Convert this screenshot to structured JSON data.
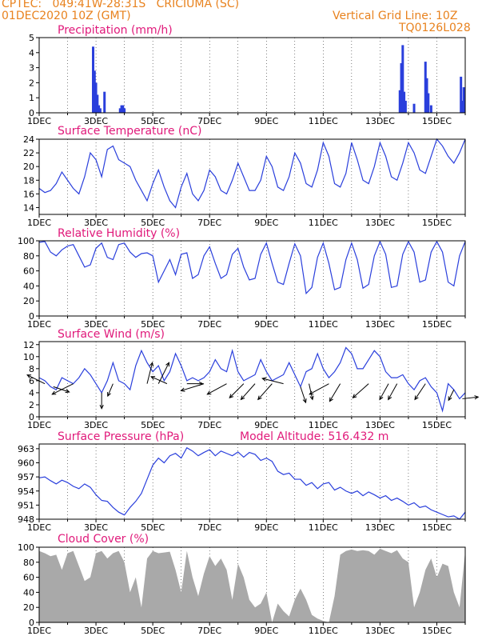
{
  "header": {
    "line1": "CPTEC:   049:41W-28:31S   CRICIUMA (SC)",
    "line2": "01DEC2020 10Z (GMT)",
    "grid_note": "Vertical Grid Line: 10Z",
    "code": "TQ0126L028"
  },
  "colors": {
    "line": "#2a3fdc",
    "wind": "#000000",
    "title": "#e0197a",
    "header": "#e8821e",
    "cloud": "#a9a9a9"
  },
  "chart_data": [
    {
      "type": "bar",
      "title": "Precipitation (mm/h)",
      "ylim": [
        0,
        5
      ],
      "yticks": [
        0,
        1,
        2,
        3,
        4,
        5
      ],
      "xtick_labels": [
        "1DEC",
        "3DEC",
        "5DEC",
        "7DEC",
        "9DEC",
        "11DEC",
        "13DEC",
        "15DEC"
      ],
      "x_day": [
        2.9,
        2.95,
        3.0,
        3.05,
        3.1,
        3.15,
        3.3,
        3.85,
        3.9,
        3.95,
        4.0,
        13.7,
        13.75,
        13.8,
        13.85,
        13.9,
        14.2,
        14.6,
        14.65,
        14.7,
        14.8,
        15.85,
        15.9,
        15.95
      ],
      "values": [
        4.4,
        2.8,
        2.0,
        1.2,
        0.5,
        0.3,
        1.4,
        0.3,
        0.5,
        0.5,
        0.3,
        1.5,
        3.3,
        4.5,
        1.4,
        0.8,
        0.6,
        3.4,
        2.3,
        1.3,
        0.5,
        2.4,
        0.8,
        1.7
      ]
    },
    {
      "type": "line",
      "title": "Surface Temperature (nC)",
      "ylim": [
        13,
        24
      ],
      "yticks": [
        14,
        16,
        18,
        20,
        22,
        24
      ],
      "xtick_labels": [
        "1DEC",
        "3DEC",
        "5DEC",
        "7DEC",
        "9DEC",
        "11DEC",
        "13DEC",
        "15DEC"
      ],
      "x_day": [
        1.0,
        1.2,
        1.4,
        1.6,
        1.8,
        2.0,
        2.2,
        2.4,
        2.6,
        2.8,
        3.0,
        3.2,
        3.4,
        3.6,
        3.8,
        4.0,
        4.2,
        4.4,
        4.6,
        4.8,
        5.0,
        5.2,
        5.4,
        5.6,
        5.8,
        6.0,
        6.2,
        6.4,
        6.6,
        6.8,
        7.0,
        7.2,
        7.4,
        7.6,
        7.8,
        8.0,
        8.2,
        8.4,
        8.6,
        8.8,
        9.0,
        9.2,
        9.4,
        9.6,
        9.8,
        10.0,
        10.2,
        10.4,
        10.6,
        10.8,
        11.0,
        11.2,
        11.4,
        11.6,
        11.8,
        12.0,
        12.2,
        12.4,
        12.6,
        12.8,
        13.0,
        13.2,
        13.4,
        13.6,
        13.8,
        14.0,
        14.2,
        14.4,
        14.6,
        14.8,
        15.0,
        15.2,
        15.4,
        15.6,
        15.8,
        16.0
      ],
      "values": [
        16.8,
        16.2,
        16.5,
        17.5,
        19.2,
        18.0,
        16.8,
        16.0,
        18.5,
        22.0,
        21.0,
        18.5,
        22.5,
        23.0,
        21.0,
        20.5,
        20.0,
        18.0,
        16.5,
        15.0,
        17.5,
        19.5,
        17.0,
        15.0,
        14.0,
        17.0,
        19.0,
        16.0,
        15.0,
        16.5,
        19.5,
        18.5,
        16.5,
        16.0,
        18.0,
        20.5,
        18.5,
        16.5,
        16.5,
        18.0,
        21.5,
        20.0,
        17.0,
        16.5,
        18.5,
        22.0,
        20.5,
        17.5,
        17.0,
        19.5,
        23.5,
        21.5,
        17.5,
        17.0,
        19.0,
        23.5,
        21.0,
        18.0,
        17.5,
        20.0,
        23.5,
        21.5,
        18.5,
        18.0,
        20.5,
        23.5,
        22.0,
        19.5,
        19.0,
        21.5,
        24.0,
        23.0,
        21.5,
        20.5,
        22.0,
        24.0
      ]
    },
    {
      "type": "line",
      "title": "Relative Humidity (%)",
      "ylim": [
        0,
        100
      ],
      "yticks": [
        0,
        20,
        40,
        60,
        80,
        100
      ],
      "xtick_labels": [
        "1DEC",
        "3DEC",
        "5DEC",
        "7DEC",
        "9DEC",
        "11DEC",
        "13DEC",
        "15DEC"
      ],
      "x_day": [
        1.0,
        1.2,
        1.4,
        1.6,
        1.8,
        2.0,
        2.2,
        2.4,
        2.6,
        2.8,
        3.0,
        3.2,
        3.4,
        3.6,
        3.8,
        4.0,
        4.2,
        4.4,
        4.6,
        4.8,
        5.0,
        5.2,
        5.4,
        5.6,
        5.8,
        6.0,
        6.2,
        6.4,
        6.6,
        6.8,
        7.0,
        7.2,
        7.4,
        7.6,
        7.8,
        8.0,
        8.2,
        8.4,
        8.6,
        8.8,
        9.0,
        9.2,
        9.4,
        9.6,
        9.8,
        10.0,
        10.2,
        10.4,
        10.6,
        10.8,
        11.0,
        11.2,
        11.4,
        11.6,
        11.8,
        12.0,
        12.2,
        12.4,
        12.6,
        12.8,
        13.0,
        13.2,
        13.4,
        13.6,
        13.8,
        14.0,
        14.2,
        14.4,
        14.6,
        14.8,
        15.0,
        15.2,
        15.4,
        15.6,
        15.8,
        16.0
      ],
      "values": [
        98,
        99,
        85,
        80,
        88,
        93,
        95,
        80,
        65,
        68,
        90,
        97,
        78,
        75,
        95,
        97,
        85,
        78,
        83,
        84,
        80,
        45,
        60,
        75,
        55,
        82,
        84,
        50,
        55,
        80,
        92,
        70,
        50,
        55,
        82,
        90,
        65,
        48,
        50,
        82,
        97,
        70,
        45,
        42,
        70,
        96,
        80,
        30,
        38,
        78,
        97,
        70,
        35,
        38,
        75,
        97,
        75,
        37,
        42,
        80,
        99,
        82,
        38,
        40,
        82,
        99,
        85,
        45,
        48,
        85,
        99,
        85,
        45,
        40,
        80,
        99
      ]
    },
    {
      "type": "line",
      "title": "Surface Wind (m/s)",
      "ylim": [
        0,
        12.5
      ],
      "yticks": [
        0,
        2,
        4,
        6,
        8,
        10,
        12
      ],
      "xtick_labels": [
        "1DEC",
        "3DEC",
        "5DEC",
        "7DEC",
        "9DEC",
        "11DEC",
        "13DEC",
        "15DEC"
      ],
      "x_day": [
        1.0,
        1.2,
        1.4,
        1.6,
        1.8,
        2.0,
        2.2,
        2.4,
        2.6,
        2.8,
        3.0,
        3.2,
        3.4,
        3.6,
        3.8,
        4.0,
        4.2,
        4.4,
        4.6,
        4.8,
        5.0,
        5.2,
        5.4,
        5.6,
        5.8,
        6.0,
        6.2,
        6.4,
        6.6,
        6.8,
        7.0,
        7.2,
        7.4,
        7.6,
        7.8,
        8.0,
        8.2,
        8.4,
        8.6,
        8.8,
        9.0,
        9.2,
        9.4,
        9.6,
        9.8,
        10.0,
        10.2,
        10.4,
        10.6,
        10.8,
        11.0,
        11.2,
        11.4,
        11.6,
        11.8,
        12.0,
        12.2,
        12.4,
        12.6,
        12.8,
        13.0,
        13.2,
        13.4,
        13.6,
        13.8,
        14.0,
        14.2,
        14.4,
        14.6,
        14.8,
        15.0,
        15.2,
        15.4,
        15.6,
        15.8,
        16.0
      ],
      "values": [
        6.5,
        6.0,
        5.0,
        4.5,
        6.5,
        6.0,
        5.5,
        6.5,
        8.0,
        7.0,
        5.5,
        4.0,
        6.0,
        9.0,
        6.0,
        5.5,
        4.5,
        8.5,
        11.0,
        9.0,
        7.5,
        8.5,
        6.0,
        7.5,
        10.5,
        8.5,
        6.0,
        6.5,
        6.0,
        6.5,
        7.5,
        9.5,
        8.0,
        7.5,
        11.0,
        7.5,
        6.0,
        6.5,
        7.0,
        9.5,
        7.5,
        6.0,
        6.5,
        7.0,
        9.0,
        7.0,
        5.0,
        7.5,
        8.0,
        10.5,
        8.0,
        6.5,
        7.5,
        9.0,
        11.5,
        10.5,
        8.0,
        8.0,
        9.5,
        11.0,
        10.0,
        7.5,
        6.5,
        6.5,
        7.0,
        5.5,
        4.5,
        6.0,
        6.5,
        5.0,
        4.0,
        1.0,
        5.5,
        4.5,
        3.0,
        4.0
      ],
      "wind_vectors": [
        {
          "day": 1.2,
          "u": -1.0,
          "v": 0.5
        },
        {
          "day": 1.5,
          "u": 0.9,
          "v": -0.3
        },
        {
          "day": 2.2,
          "u": -1.2,
          "v": -0.6
        },
        {
          "day": 3.2,
          "u": 0.0,
          "v": -0.9
        },
        {
          "day": 3.6,
          "u": -0.3,
          "v": -0.7
        },
        {
          "day": 4.8,
          "u": 0.3,
          "v": 1.2
        },
        {
          "day": 5.2,
          "u": 0.6,
          "v": 1.2
        },
        {
          "day": 5.5,
          "u": -0.9,
          "v": 0.4
        },
        {
          "day": 6.2,
          "u": 0.9,
          "v": 0.0
        },
        {
          "day": 6.8,
          "u": -1.3,
          "v": -0.4
        },
        {
          "day": 7.6,
          "u": -1.1,
          "v": -0.6
        },
        {
          "day": 8.2,
          "u": -0.8,
          "v": -0.8
        },
        {
          "day": 8.6,
          "u": -0.8,
          "v": -0.9
        },
        {
          "day": 9.2,
          "u": -0.8,
          "v": -0.9
        },
        {
          "day": 9.6,
          "u": -1.2,
          "v": 0.3
        },
        {
          "day": 10.2,
          "u": 0.3,
          "v": -0.9
        },
        {
          "day": 10.5,
          "u": 0.2,
          "v": -0.9
        },
        {
          "day": 11.2,
          "u": -1.1,
          "v": -0.6
        },
        {
          "day": 11.6,
          "u": -0.6,
          "v": -1.0
        },
        {
          "day": 12.6,
          "u": -0.9,
          "v": -0.8
        },
        {
          "day": 13.3,
          "u": -0.5,
          "v": -0.9
        },
        {
          "day": 13.6,
          "u": -0.5,
          "v": -0.9
        },
        {
          "day": 14.6,
          "u": -0.6,
          "v": -0.9
        },
        {
          "day": 15.6,
          "u": -0.3,
          "v": -0.6
        },
        {
          "day": 15.9,
          "u": 0.9,
          "v": 0.1
        }
      ]
    },
    {
      "type": "line",
      "title": "Surface Pressure (hPa)",
      "subtitle": "Model Altitude: 516.432  m",
      "ylim": [
        948,
        964
      ],
      "yticks": [
        948,
        951,
        954,
        957,
        960,
        963
      ],
      "xtick_labels": [
        "1DEC",
        "3DEC",
        "5DEC",
        "7DEC",
        "9DEC",
        "11DEC",
        "13DEC",
        "15DEC"
      ],
      "x_day": [
        1.0,
        1.2,
        1.4,
        1.6,
        1.8,
        2.0,
        2.2,
        2.4,
        2.6,
        2.8,
        3.0,
        3.2,
        3.4,
        3.6,
        3.8,
        4.0,
        4.2,
        4.4,
        4.6,
        4.8,
        5.0,
        5.2,
        5.4,
        5.6,
        5.8,
        6.0,
        6.2,
        6.4,
        6.6,
        6.8,
        7.0,
        7.2,
        7.4,
        7.6,
        7.8,
        8.0,
        8.2,
        8.4,
        8.6,
        8.8,
        9.0,
        9.2,
        9.4,
        9.6,
        9.8,
        10.0,
        10.2,
        10.4,
        10.6,
        10.8,
        11.0,
        11.2,
        11.4,
        11.6,
        11.8,
        12.0,
        12.2,
        12.4,
        12.6,
        12.8,
        13.0,
        13.2,
        13.4,
        13.6,
        13.8,
        14.0,
        14.2,
        14.4,
        14.6,
        14.8,
        15.0,
        15.2,
        15.4,
        15.6,
        15.8,
        16.0
      ],
      "values": [
        956.8,
        957.0,
        956.2,
        955.5,
        956.3,
        955.8,
        955.0,
        954.5,
        955.5,
        954.8,
        953.2,
        952.0,
        951.8,
        950.5,
        949.5,
        948.9,
        950.5,
        951.8,
        953.5,
        956.5,
        959.5,
        961.0,
        960.0,
        961.5,
        962.0,
        961.0,
        963.2,
        962.5,
        961.5,
        962.2,
        962.8,
        961.5,
        962.5,
        962.0,
        961.5,
        962.3,
        961.2,
        962.2,
        961.8,
        960.5,
        961.0,
        960.3,
        958.2,
        957.5,
        957.8,
        956.5,
        956.5,
        955.2,
        955.8,
        954.5,
        955.5,
        955.8,
        954.2,
        954.8,
        954.0,
        953.5,
        954.0,
        953.0,
        953.8,
        953.2,
        952.5,
        953.0,
        952.0,
        952.5,
        951.8,
        951.0,
        951.5,
        950.5,
        950.8,
        950.0,
        949.5,
        949.0,
        948.5,
        948.7,
        948.0,
        949.5
      ]
    },
    {
      "type": "area",
      "title": "Cloud Cover (%)",
      "ylim": [
        0,
        100
      ],
      "yticks": [
        0,
        20,
        40,
        60,
        80,
        100
      ],
      "xtick_labels": [
        "1DEC",
        "3DEC",
        "5DEC",
        "7DEC",
        "9DEC",
        "11DEC",
        "13DEC",
        "15DEC"
      ],
      "x_day": [
        1.0,
        1.2,
        1.4,
        1.6,
        1.8,
        2.0,
        2.2,
        2.4,
        2.6,
        2.8,
        3.0,
        3.2,
        3.4,
        3.6,
        3.8,
        4.0,
        4.2,
        4.4,
        4.6,
        4.8,
        5.0,
        5.2,
        5.4,
        5.6,
        5.8,
        6.0,
        6.2,
        6.4,
        6.6,
        6.8,
        7.0,
        7.2,
        7.4,
        7.6,
        7.8,
        8.0,
        8.2,
        8.4,
        8.6,
        8.8,
        9.0,
        9.2,
        9.4,
        9.6,
        9.8,
        10.0,
        10.2,
        10.4,
        10.6,
        10.8,
        11.0,
        11.2,
        11.4,
        11.6,
        11.8,
        12.0,
        12.2,
        12.4,
        12.6,
        12.8,
        13.0,
        13.2,
        13.4,
        13.6,
        13.8,
        14.0,
        14.2,
        14.4,
        14.6,
        14.8,
        15.0,
        15.2,
        15.4,
        15.6,
        15.8,
        16.0
      ],
      "values": [
        95,
        92,
        88,
        90,
        70,
        92,
        95,
        75,
        55,
        60,
        92,
        95,
        85,
        92,
        95,
        80,
        40,
        60,
        20,
        85,
        95,
        92,
        93,
        94,
        70,
        40,
        95,
        60,
        35,
        65,
        88,
        75,
        85,
        70,
        30,
        78,
        60,
        30,
        20,
        25,
        40,
        0,
        25,
        15,
        8,
        30,
        45,
        30,
        10,
        5,
        2,
        0,
        35,
        90,
        95,
        97,
        95,
        96,
        95,
        90,
        98,
        95,
        92,
        96,
        85,
        80,
        20,
        40,
        70,
        85,
        60,
        78,
        75,
        40,
        20,
        95
      ]
    }
  ]
}
